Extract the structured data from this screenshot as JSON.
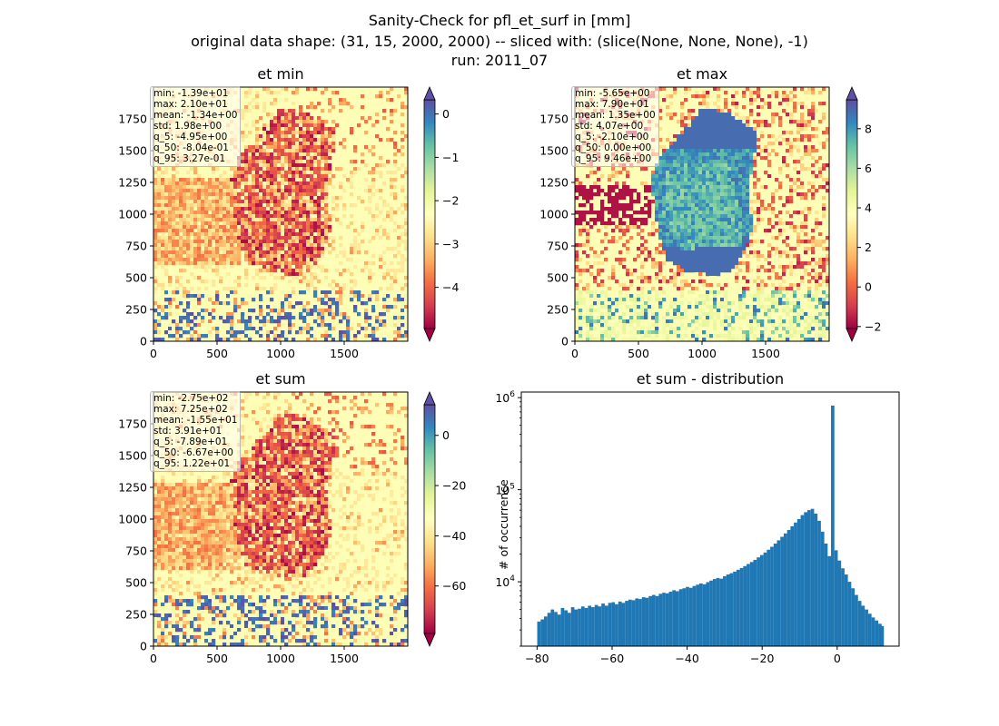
{
  "figure": {
    "title_lines": [
      "Sanity-Check for pfl_et_surf in [mm]",
      "original data shape: (31, 15, 2000, 2000) -- sliced with: (slice(None, None, None), -1)",
      "run: 2011_07"
    ]
  },
  "colors": {
    "bar": "#1f77b4",
    "land_low": "#9e0142",
    "sea": "#fefeb6",
    "high": "#5e4fa2"
  },
  "map_axes": {
    "x_ticks": [
      0,
      500,
      1000,
      1500
    ],
    "y_ticks": [
      0,
      250,
      500,
      750,
      1000,
      1250,
      1500,
      1750
    ],
    "extent": [
      0,
      2000
    ]
  },
  "panels": [
    {
      "title": "et min",
      "colormap": "Spectral",
      "colorbar": {
        "ticks": [
          0,
          -1,
          -2,
          -3,
          -4
        ],
        "tick_labels": [
          "0",
          "−1",
          "−2",
          "−3",
          "−4"
        ],
        "vmin": -4.95,
        "vmax": 0.327
      },
      "stats": [
        "min: -1.39e+01",
        "max: 2.10e+01",
        "mean: -1.34e+00",
        "std: 1.98e+00",
        "q_5: -4.95e+00",
        "q_50: -8.04e-01",
        "q_95: 3.27e-01"
      ]
    },
    {
      "title": "et max",
      "colormap": "Spectral",
      "colorbar": {
        "ticks": [
          8,
          6,
          4,
          2,
          0,
          -2
        ],
        "tick_labels": [
          "8",
          "6",
          "4",
          "2",
          "0",
          "−2"
        ],
        "vmin": -2.1,
        "vmax": 9.46
      },
      "stats": [
        "min: -5.65e+00",
        "max: 7.90e+01",
        "mean: 1.35e+00",
        "std: 4.07e+00",
        "q_5: -2.10e+00",
        "q_50: 0.00e+00",
        "q_95: 9.46e+00"
      ]
    },
    {
      "title": "et sum",
      "colormap": "Spectral",
      "colorbar": {
        "ticks": [
          0,
          -20,
          -40,
          -60
        ],
        "tick_labels": [
          "0",
          "−20",
          "−40",
          "−60"
        ],
        "vmin": -78.9,
        "vmax": 12.2
      },
      "stats": [
        "min: -2.75e+02",
        "max: 7.25e+02",
        "mean: -1.55e+01",
        "std: 3.91e+01",
        "q_5: -7.89e+01",
        "q_50: -6.67e+00",
        "q_95: 1.22e+01"
      ]
    }
  ],
  "histogram": {
    "title": "et sum - distribution",
    "ylabel": "# of occurrence",
    "x_ticks": [
      -80,
      -60,
      -40,
      -20,
      0
    ],
    "x_tick_labels": [
      "−80",
      "−60",
      "−40",
      "−20",
      "0"
    ],
    "y_ticks": [
      10000,
      100000,
      1000000
    ],
    "y_tick_labels": [
      {
        "base": "10",
        "exp": "4"
      },
      {
        "base": "10",
        "exp": "5"
      },
      {
        "base": "10",
        "exp": "6"
      }
    ]
  },
  "chart_data": {
    "type": "bar",
    "title": "et sum - distribution",
    "xlabel": "",
    "ylabel": "# of occurrence",
    "yscale": "log",
    "xlim": [
      -84.2,
      16.5
    ],
    "ylim": [
      2000,
      1150000
    ],
    "grid": false,
    "bin_width": 0.9,
    "x": [
      -79.5,
      -78.6,
      -77.7,
      -76.8,
      -75.9,
      -75.0,
      -74.1,
      -73.2,
      -72.3,
      -71.4,
      -70.5,
      -69.6,
      -68.7,
      -67.8,
      -66.9,
      -66.0,
      -65.1,
      -64.2,
      -63.3,
      -62.4,
      -61.5,
      -60.6,
      -59.7,
      -58.8,
      -57.9,
      -57.0,
      -56.1,
      -55.2,
      -54.3,
      -53.4,
      -52.5,
      -51.6,
      -50.7,
      -49.8,
      -48.9,
      -48.0,
      -47.1,
      -46.2,
      -45.3,
      -44.4,
      -43.5,
      -42.6,
      -41.7,
      -40.8,
      -39.9,
      -39.0,
      -38.1,
      -37.2,
      -36.3,
      -35.4,
      -34.5,
      -33.6,
      -32.7,
      -31.8,
      -30.9,
      -30.0,
      -29.1,
      -28.2,
      -27.3,
      -26.4,
      -25.5,
      -24.6,
      -23.7,
      -22.8,
      -21.9,
      -21.0,
      -20.1,
      -19.2,
      -18.3,
      -17.4,
      -16.5,
      -15.6,
      -14.7,
      -13.8,
      -12.9,
      -12.0,
      -11.1,
      -10.2,
      -9.3,
      -8.4,
      -7.5,
      -6.6,
      -5.7,
      -4.8,
      -3.9,
      -3.0,
      -2.1,
      -1.2,
      -0.3,
      0.6,
      1.5,
      2.4,
      3.3,
      4.2,
      5.1,
      6.0,
      6.9,
      7.8,
      8.7,
      9.6,
      10.5,
      11.4,
      12.0
    ],
    "values": [
      3700,
      3900,
      4200,
      4600,
      5000,
      4700,
      4400,
      5200,
      4900,
      4600,
      5300,
      5000,
      5100,
      5400,
      5200,
      5500,
      5300,
      5600,
      5400,
      5800,
      5500,
      5900,
      6000,
      5700,
      6100,
      5900,
      6200,
      6400,
      6300,
      6600,
      6500,
      6800,
      6700,
      7000,
      7200,
      7000,
      7400,
      7600,
      7500,
      7800,
      8100,
      7900,
      8300,
      8500,
      8800,
      8600,
      9000,
      9300,
      9600,
      9400,
      9900,
      10300,
      10700,
      11000,
      10800,
      11500,
      12000,
      12400,
      12900,
      13500,
      14100,
      14800,
      15600,
      16400,
      17300,
      18400,
      19500,
      20800,
      22300,
      24000,
      26000,
      28200,
      30800,
      33500,
      36500,
      40000,
      44000,
      48000,
      53000,
      57000,
      60000,
      62000,
      55000,
      46000,
      35000,
      26000,
      19000,
      820000,
      22000,
      17000,
      14000,
      12000,
      10000,
      8500,
      7200,
      6200,
      5500,
      5000,
      4500,
      4100,
      3800,
      3500,
      3300
    ]
  }
}
